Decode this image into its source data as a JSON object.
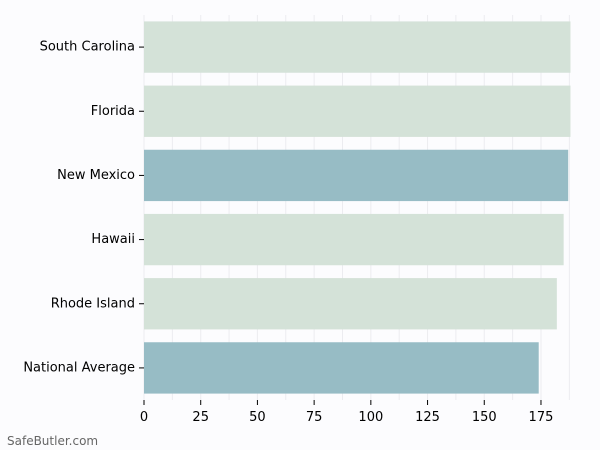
{
  "watermark": "SafeButler.com",
  "chart_data": {
    "type": "bar",
    "orientation": "horizontal",
    "categories": [
      "South Carolina",
      "Florida",
      "New Mexico",
      "Hawaii",
      "Rhode Island",
      "National Average"
    ],
    "values": [
      188,
      188,
      187,
      185,
      182,
      174
    ],
    "colors": [
      "#d4e2d8",
      "#d4e2d8",
      "#97bcc5",
      "#d4e2d8",
      "#d4e2d8",
      "#97bcc5"
    ],
    "xlim": [
      0,
      190
    ],
    "xticks": [
      0,
      25,
      50,
      75,
      100,
      125,
      150,
      175
    ],
    "grid": "vertical",
    "title": "",
    "xlabel": "",
    "ylabel": ""
  }
}
